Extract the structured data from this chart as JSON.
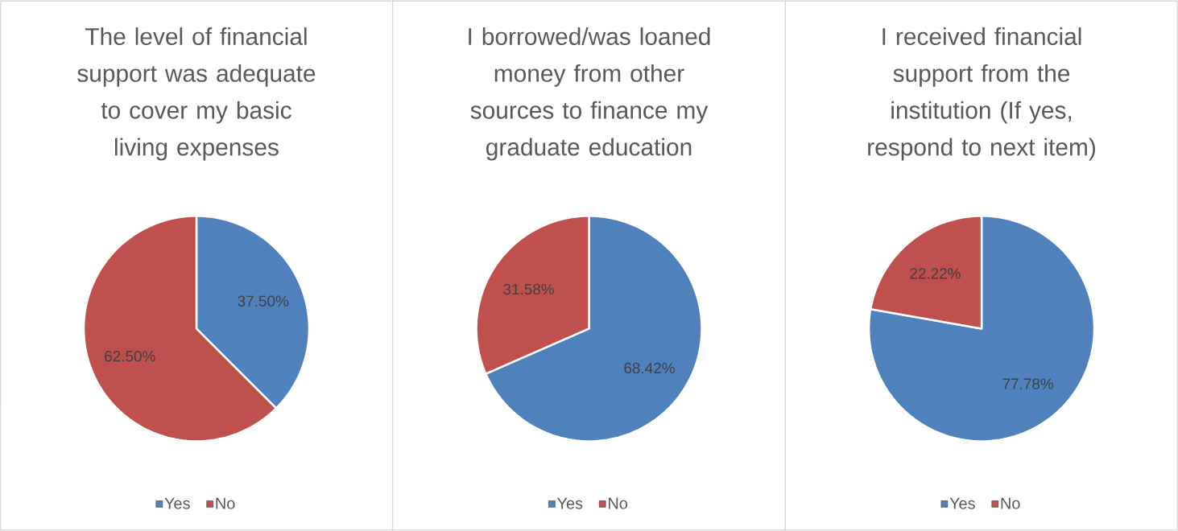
{
  "chart_data": [
    {
      "type": "pie",
      "title": "The level of financial support was adequate to cover my basic living expenses",
      "categories": [
        "Yes",
        "No"
      ],
      "values": [
        37.5,
        62.5
      ],
      "colors": [
        "#4f81bd",
        "#c0504d"
      ],
      "value_labels": [
        "37.50%",
        "62.50%"
      ],
      "legend": "bottom"
    },
    {
      "type": "pie",
      "title": "I borrowed/was loaned money from other sources to finance my graduate education",
      "categories": [
        "Yes",
        "No"
      ],
      "values": [
        68.42,
        31.58
      ],
      "colors": [
        "#4f81bd",
        "#c0504d"
      ],
      "value_labels": [
        "68.42%",
        "31.58%"
      ],
      "legend": "bottom"
    },
    {
      "type": "pie",
      "title": "I received financial support from the institution (If yes, respond to next item)",
      "categories": [
        "Yes",
        "No"
      ],
      "values": [
        77.78,
        22.22
      ],
      "colors": [
        "#4f81bd",
        "#c0504d"
      ],
      "value_labels": [
        "77.78%",
        "22.22%"
      ],
      "legend": "bottom"
    }
  ]
}
